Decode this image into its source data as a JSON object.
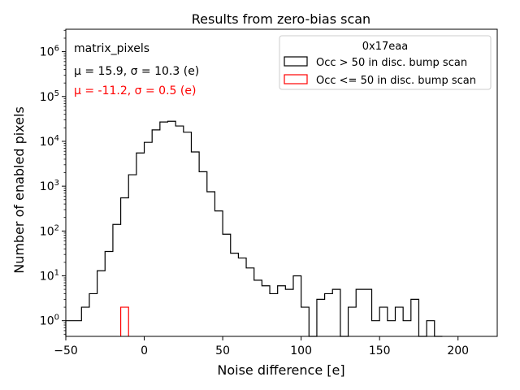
{
  "chart_data": {
    "type": "histogram",
    "title": "Results from zero-bias scan",
    "xlabel": "Noise difference [e]",
    "ylabel": "Number of enabled pixels",
    "xlim": [
      -50,
      225
    ],
    "ylim_log10": [
      -0.35,
      6.5
    ],
    "yscale": "log",
    "x_ticks": [
      -50,
      0,
      50,
      100,
      150,
      200
    ],
    "x_tick_labels": [
      "−50",
      "0",
      "50",
      "100",
      "150",
      "200"
    ],
    "y_tick_exponents": [
      0,
      1,
      2,
      3,
      4,
      5,
      6
    ],
    "bin_width": 5,
    "annotation_lines": [
      {
        "text": "matrix_pixels",
        "color": "#000000"
      },
      {
        "text": "μ = 15.9, σ = 10.3 (e)",
        "color": "#000000"
      },
      {
        "text": "μ = -11.2, σ = 0.5 (e)",
        "color": "#ff0000"
      }
    ],
    "legend": {
      "title": "0x17eaa",
      "position": "top-right",
      "entries": [
        "Occ > 50 in disc. bump scan",
        "Occ <= 50 in disc. bump scan"
      ]
    },
    "series": [
      {
        "name": "Occ > 50 in disc. bump scan",
        "color": "#000000",
        "bin_edges": [
          -50,
          -45,
          -40,
          -35,
          -30,
          -25,
          -20,
          -15,
          -10,
          -5,
          0,
          5,
          10,
          15,
          20,
          25,
          30,
          35,
          40,
          45,
          50,
          55,
          60,
          65,
          70,
          75,
          80,
          85,
          90,
          95,
          100,
          105,
          110,
          115,
          120,
          125,
          130,
          135,
          140,
          145,
          150,
          155,
          160,
          165,
          170,
          175,
          180,
          185,
          190
        ],
        "counts": [
          1,
          1,
          2,
          4,
          13,
          35,
          140,
          550,
          1800,
          5500,
          9500,
          18000,
          27000,
          28000,
          22000,
          16000,
          5800,
          2100,
          750,
          280,
          85,
          32,
          25,
          15,
          8,
          6,
          4,
          6,
          5,
          10,
          2,
          0,
          3,
          4,
          5,
          0,
          2,
          5,
          5,
          1,
          2,
          1,
          2,
          1,
          3,
          0,
          1,
          0
        ]
      },
      {
        "name": "Occ <= 50 in disc. bump scan",
        "color": "#ff0000",
        "bin_edges": [
          -15,
          -10
        ],
        "counts": [
          2
        ]
      }
    ]
  }
}
